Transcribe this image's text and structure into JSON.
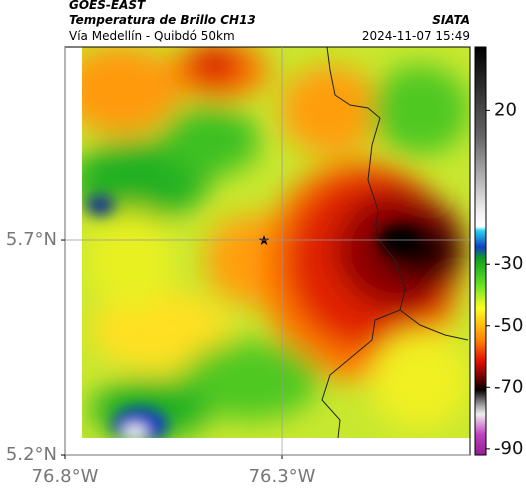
{
  "header": {
    "title": "GOES-EAST",
    "subtitle": "Temperatura de Brillo CH13",
    "route": "Vía Medellín - Quibdó 50km",
    "source": "SIATA",
    "timestamp": "2024-11-07 15:49"
  },
  "map": {
    "xlim": [
      -76.8,
      -75.867
    ],
    "ylim": [
      5.2,
      6.149
    ],
    "xticks": [
      {
        "value": -76.8,
        "label": "76.8°W"
      },
      {
        "value": -76.3,
        "label": "76.3°W"
      }
    ],
    "yticks": [
      {
        "value": 5.7,
        "label": "5.7°N"
      },
      {
        "value": 5.2,
        "label": "5.2°N"
      }
    ],
    "grid": true
  },
  "colorbar": {
    "lim": [
      -92,
      40.6
    ],
    "ticks": [
      20,
      -30,
      -50,
      -70,
      -90
    ]
  }
}
